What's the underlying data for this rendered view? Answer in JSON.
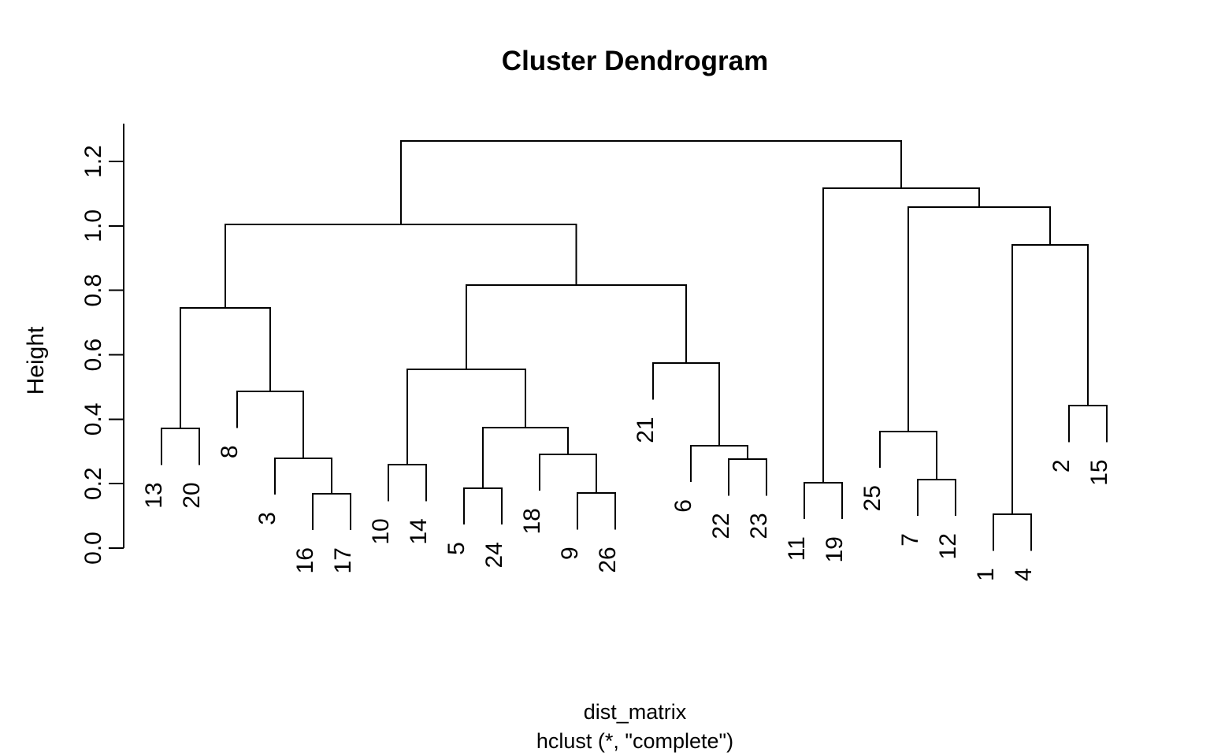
{
  "page": {
    "background": "#ffffff",
    "line_color": "#000000",
    "text_color": "#000000"
  },
  "chart": {
    "title": "Cluster Dendrogram",
    "y_axis_title": "Height",
    "caption_line1": "dist_matrix",
    "caption_line2": "hclust (*, \"complete\")"
  },
  "chart_data": {
    "type": "dendrogram",
    "title": "Cluster Dendrogram",
    "ylabel": "Height",
    "xlabel": "dist_matrix",
    "subtitle": "hclust (*, \"complete\")",
    "clustering_method": "complete",
    "distance_object": "dist_matrix",
    "yticks": [
      "0.0",
      "0.2",
      "0.4",
      "0.6",
      "0.8",
      "1.0",
      "1.2"
    ],
    "ylim": [
      0.0,
      1.32
    ],
    "grid": false,
    "legend": false,
    "hang": 0.113,
    "leaf_order": [
      "13",
      "20",
      "8",
      "3",
      "16",
      "17",
      "10",
      "14",
      "5",
      "24",
      "18",
      "9",
      "26",
      "21",
      "6",
      "22",
      "23",
      "11",
      "19",
      "25",
      "7",
      "12",
      "1",
      "4",
      "2",
      "15"
    ],
    "tree": {
      "height": 1.263,
      "children": [
        {
          "height": 1.004,
          "children": [
            {
              "height": 0.745,
              "children": [
                {
                  "height": 0.371,
                  "children": [
                    {
                      "leaf": "13"
                    },
                    {
                      "leaf": "20"
                    }
                  ]
                },
                {
                  "height": 0.486,
                  "children": [
                    {
                      "leaf": "8"
                    },
                    {
                      "height": 0.279,
                      "children": [
                        {
                          "leaf": "3"
                        },
                        {
                          "height": 0.169,
                          "children": [
                            {
                              "leaf": "16"
                            },
                            {
                              "leaf": "17"
                            }
                          ]
                        }
                      ]
                    }
                  ]
                }
              ]
            },
            {
              "height": 0.816,
              "children": [
                {
                  "height": 0.555,
                  "children": [
                    {
                      "height": 0.259,
                      "children": [
                        {
                          "leaf": "10"
                        },
                        {
                          "leaf": "14"
                        }
                      ]
                    },
                    {
                      "height": 0.374,
                      "children": [
                        {
                          "height": 0.186,
                          "children": [
                            {
                              "leaf": "5"
                            },
                            {
                              "leaf": "24"
                            }
                          ]
                        },
                        {
                          "height": 0.291,
                          "children": [
                            {
                              "leaf": "18"
                            },
                            {
                              "height": 0.171,
                              "children": [
                                {
                                  "leaf": "9"
                                },
                                {
                                  "leaf": "26"
                                }
                              ]
                            }
                          ]
                        }
                      ]
                    }
                  ]
                },
                {
                  "height": 0.574,
                  "children": [
                    {
                      "leaf": "21"
                    },
                    {
                      "height": 0.318,
                      "children": [
                        {
                          "leaf": "6"
                        },
                        {
                          "height": 0.276,
                          "children": [
                            {
                              "leaf": "22"
                            },
                            {
                              "leaf": "23"
                            }
                          ]
                        }
                      ]
                    }
                  ]
                }
              ]
            }
          ]
        },
        {
          "height": 1.117,
          "children": [
            {
              "height": 0.203,
              "children": [
                {
                  "leaf": "11"
                },
                {
                  "leaf": "19"
                }
              ]
            },
            {
              "height": 1.058,
              "children": [
                {
                  "height": 0.362,
                  "children": [
                    {
                      "leaf": "25"
                    },
                    {
                      "height": 0.213,
                      "children": [
                        {
                          "leaf": "7"
                        },
                        {
                          "leaf": "12"
                        }
                      ]
                    }
                  ]
                },
                {
                  "height": 0.941,
                  "children": [
                    {
                      "height": 0.105,
                      "children": [
                        {
                          "leaf": "1"
                        },
                        {
                          "leaf": "4"
                        }
                      ]
                    },
                    {
                      "height": 0.442,
                      "children": [
                        {
                          "leaf": "2"
                        },
                        {
                          "leaf": "15"
                        }
                      ]
                    }
                  ]
                }
              ]
            }
          ]
        }
      ]
    }
  }
}
